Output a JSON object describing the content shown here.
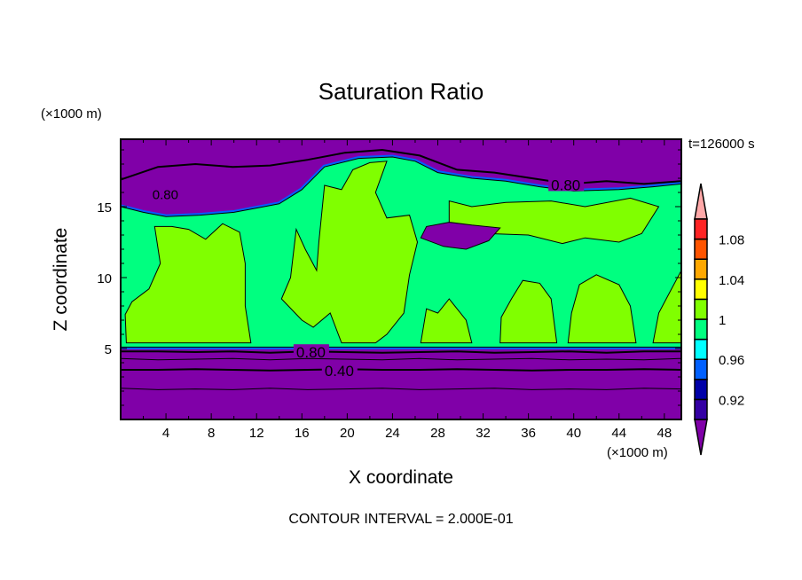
{
  "chart_data": {
    "type": "heatmap",
    "subtype": "filled-contour",
    "title": "Saturation Ratio",
    "xlabel": "X coordinate",
    "ylabel": "Z coordinate",
    "x_unit": "(×1000 m)",
    "y_unit": "(×1000 m)",
    "time_label": "t=126000 s",
    "footer": "CONTOUR INTERVAL = 2.000E-01",
    "xlim": [
      0,
      49.5
    ],
    "ylim": [
      0,
      19.75
    ],
    "xticks": [
      4,
      8,
      12,
      16,
      20,
      24,
      28,
      32,
      36,
      40,
      44,
      48
    ],
    "yticks": [
      5,
      10,
      15
    ],
    "colorbar": {
      "levels": [
        0.9,
        0.92,
        0.94,
        0.96,
        0.98,
        1.0,
        1.02,
        1.04,
        1.06,
        1.08,
        1.1
      ],
      "labels": [
        "1.08",
        "1.04",
        "1",
        "0.96",
        "0.92"
      ],
      "label_values": [
        1.08,
        1.04,
        1.0,
        0.96,
        0.92
      ],
      "colors": [
        "#8000a8",
        "#3400a4",
        "#0000a8",
        "#0060ff",
        "#00ffff",
        "#00ff80",
        "#80ff00",
        "#ffff00",
        "#ffa800",
        "#ff5400",
        "#ff2424",
        "#ffa8a8"
      ]
    },
    "regions": [
      {
        "level": "0.98-1",
        "color": "#00ff80",
        "points": [
          [
            0,
            5.1
          ],
          [
            49.5,
            5.1
          ],
          [
            49.5,
            16.6
          ],
          [
            47,
            16.4
          ],
          [
            44,
            16.2
          ],
          [
            40,
            16.1
          ],
          [
            37,
            16.4
          ],
          [
            34,
            16.8
          ],
          [
            31,
            17.0
          ],
          [
            28,
            17.4
          ],
          [
            26,
            18.2
          ],
          [
            24,
            18.5
          ],
          [
            21,
            18.4
          ],
          [
            18,
            17.8
          ],
          [
            16,
            16.2
          ],
          [
            14,
            15.2
          ],
          [
            12,
            14.9
          ],
          [
            10,
            14.6
          ],
          [
            7,
            14.4
          ],
          [
            4,
            14.3
          ],
          [
            2,
            14.6
          ],
          [
            0,
            15.0
          ]
        ]
      },
      {
        "level": "1-1.02",
        "color": "#80ff00",
        "points": [
          [
            0.5,
            5.4
          ],
          [
            11.5,
            5.4
          ],
          [
            11,
            8
          ],
          [
            11,
            11
          ],
          [
            10.5,
            13.2
          ],
          [
            9,
            13.8
          ],
          [
            7.5,
            12.7
          ],
          [
            6,
            13.4
          ],
          [
            4.5,
            13.6
          ],
          [
            3,
            13.6
          ],
          [
            3.5,
            11
          ],
          [
            2.5,
            9.2
          ],
          [
            1,
            8.3
          ],
          [
            0.4,
            7.4
          ]
        ]
      },
      {
        "level": "1-1.02",
        "color": "#80ff00",
        "points": [
          [
            14.2,
            8.5
          ],
          [
            15,
            10
          ],
          [
            15.5,
            13.4
          ],
          [
            16.3,
            12
          ],
          [
            17.3,
            10.5
          ],
          [
            17.5,
            12.5
          ],
          [
            18,
            16.5
          ],
          [
            19.5,
            16.2
          ],
          [
            20.5,
            17.6
          ],
          [
            22,
            18.1
          ],
          [
            23.5,
            18.2
          ],
          [
            22.5,
            16
          ],
          [
            23.5,
            14.2
          ],
          [
            25.5,
            14.4
          ],
          [
            26.2,
            12.5
          ],
          [
            25.5,
            10.2
          ],
          [
            25,
            7.5
          ],
          [
            23.5,
            6
          ],
          [
            22.5,
            5.4
          ],
          [
            19.5,
            5.4
          ],
          [
            18.5,
            7.5
          ],
          [
            17,
            6.5
          ],
          [
            16,
            7
          ]
        ]
      },
      {
        "level": "1-1.02",
        "color": "#80ff00",
        "points": [
          [
            29,
            13.2
          ],
          [
            36,
            13.0
          ],
          [
            39,
            12.4
          ],
          [
            41,
            12.8
          ],
          [
            44,
            12.5
          ],
          [
            46,
            13.1
          ],
          [
            47.5,
            15.0
          ],
          [
            45,
            15.6
          ],
          [
            41,
            15.0
          ],
          [
            38,
            15.4
          ],
          [
            34,
            15.3
          ],
          [
            31,
            15.0
          ],
          [
            29,
            15.4
          ]
        ]
      },
      {
        "level": "1-1.02",
        "color": "#80ff00",
        "points": [
          [
            26.5,
            5.4
          ],
          [
            31,
            5.4
          ],
          [
            30.5,
            7
          ],
          [
            29,
            8.5
          ],
          [
            28,
            7.5
          ],
          [
            27,
            7.8
          ]
        ]
      },
      {
        "level": "1-1.02",
        "color": "#80ff00",
        "points": [
          [
            33.5,
            5.4
          ],
          [
            38.5,
            5.4
          ],
          [
            38,
            8.5
          ],
          [
            37,
            9.6
          ],
          [
            35.5,
            9.8
          ],
          [
            34.5,
            8.5
          ],
          [
            33.6,
            7.2
          ]
        ]
      },
      {
        "level": "1-1.02",
        "color": "#80ff00",
        "points": [
          [
            39.5,
            5.4
          ],
          [
            45.5,
            5.4
          ],
          [
            45,
            8
          ],
          [
            44,
            9.5
          ],
          [
            42,
            10.2
          ],
          [
            40.5,
            9.5
          ],
          [
            39.8,
            7.5
          ]
        ]
      },
      {
        "level": "1-1.02",
        "color": "#80ff00",
        "points": [
          [
            47,
            5.4
          ],
          [
            49.5,
            5.4
          ],
          [
            49.5,
            10.5
          ],
          [
            48.5,
            9
          ],
          [
            47.5,
            7.5
          ]
        ]
      },
      {
        "level": "<0.9",
        "color": "#8000a8",
        "points": [
          [
            26.5,
            12.8
          ],
          [
            28.5,
            12.2
          ],
          [
            30.5,
            12.0
          ],
          [
            32.5,
            12.6
          ],
          [
            33.5,
            13.5
          ],
          [
            31,
            13.7
          ],
          [
            29,
            13.9
          ],
          [
            27,
            13.6
          ]
        ]
      }
    ],
    "contour_lines": [
      {
        "value": 0.8,
        "label": "0.80",
        "z": [
          16.9,
          17.8,
          18.0,
          17.8,
          17.9,
          18.3,
          18.8,
          19.0,
          18.6,
          17.6,
          17.4,
          17.0,
          16.6,
          16.8,
          16.6,
          16.8
        ],
        "label_x": 38
      },
      {
        "value": 0.8,
        "label": "0.80",
        "z": [
          4.8,
          4.8,
          4.75,
          4.8,
          4.7,
          4.8,
          4.75,
          4.7,
          4.75,
          4.8,
          4.7,
          4.75,
          4.8,
          4.7,
          4.8,
          4.8
        ],
        "label_x": 15.5
      },
      {
        "value": 0.6,
        "label": "",
        "z": [
          4.3,
          4.2,
          4.25,
          4.3,
          4.2,
          4.3,
          4.25,
          4.2,
          4.3,
          4.2,
          4.25,
          4.3,
          4.2,
          4.25,
          4.2,
          4.3
        ],
        "label_x": null
      },
      {
        "value": 0.4,
        "label": "0.40",
        "z": [
          3.5,
          3.5,
          3.55,
          3.5,
          3.45,
          3.5,
          3.55,
          3.5,
          3.5,
          3.55,
          3.5,
          3.45,
          3.5,
          3.5,
          3.55,
          3.5
        ],
        "label_x": 18
      },
      {
        "value": 0.2,
        "label": "",
        "z": [
          2.2,
          2.1,
          2.15,
          2.1,
          2.2,
          2.1,
          2.15,
          2.2,
          2.1,
          2.15,
          2.2,
          2.1,
          2.15,
          2.1,
          2.2,
          2.15
        ],
        "label_x": null
      }
    ],
    "upper_label": {
      "label": "0.80",
      "x": 2.8,
      "z": 15.9
    }
  }
}
